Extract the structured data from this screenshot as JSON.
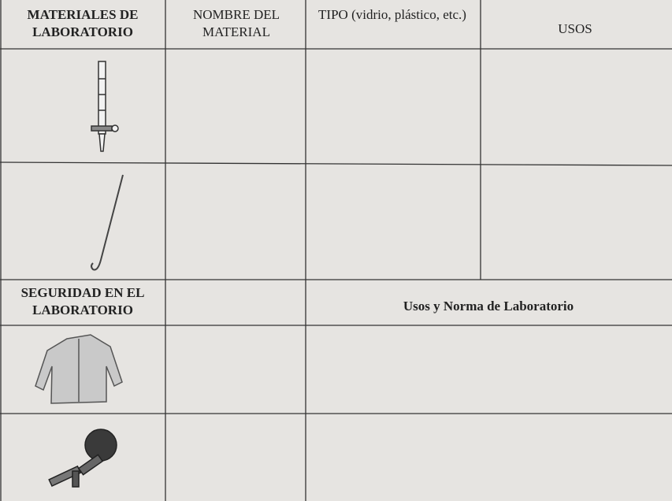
{
  "table": {
    "header": [
      "MATERIALES DE LABORATORIO",
      "NOMBRE DEL MATERIAL",
      "TIPO (vidrio, plástico, etc.)",
      "USOS"
    ],
    "section": [
      "SEGURIDAD EN EL LABORATORIO",
      "Usos y Norma de Laboratorio"
    ]
  }
}
